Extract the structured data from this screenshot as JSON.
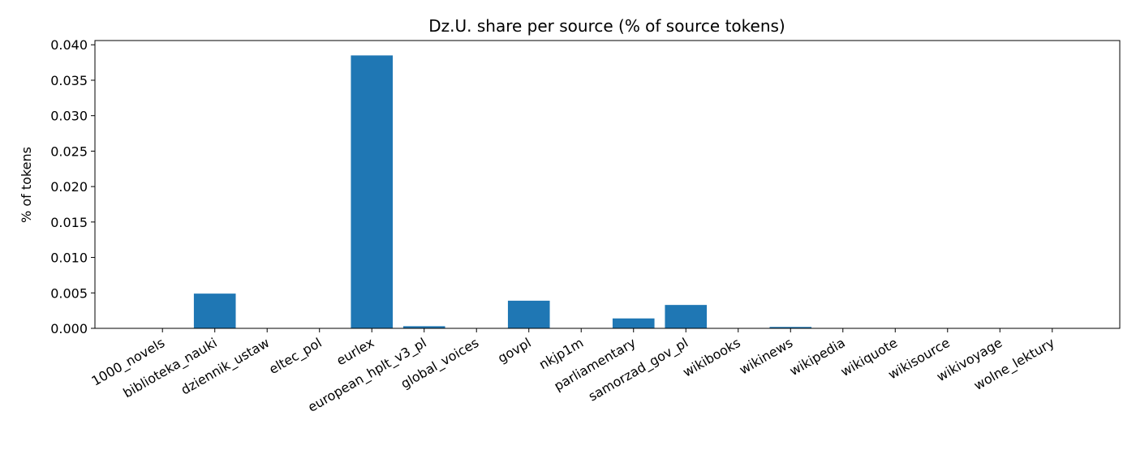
{
  "chart_data": {
    "type": "bar",
    "title": "Dz.U. share per source (% of source tokens)",
    "y_label": "% of tokens",
    "categories": [
      "1000_novels",
      "biblioteka_nauki",
      "dziennik_ustaw",
      "eltec_pol",
      "eurlex",
      "european_hplt_v3_pl",
      "global_voices",
      "govpl",
      "nkjp1m",
      "parliamentary",
      "samorzad_gov_pl",
      "wikibooks",
      "wikinews",
      "wikipedia",
      "wikiquote",
      "wikisource",
      "wikivoyage",
      "wolne_lektury"
    ],
    "values": [
      0,
      0.0049,
      0,
      0,
      0.0385,
      0.0003,
      0,
      0.0039,
      0,
      0.0014,
      0.0033,
      5e-05,
      0.0002,
      0,
      0,
      0,
      0,
      0
    ],
    "color": "#1f77b4",
    "ylim": [
      0,
      0.0406
    ],
    "yticks": [
      {
        "value": 0,
        "label": "0.000"
      },
      {
        "value": 0.005,
        "label": "0.005"
      },
      {
        "value": 0.01,
        "label": "0.010"
      },
      {
        "value": 0.015,
        "label": "0.015"
      },
      {
        "value": 0.02,
        "label": "0.020"
      },
      {
        "value": 0.025,
        "label": "0.025"
      },
      {
        "value": 0.03,
        "label": "0.030"
      },
      {
        "value": 0.035,
        "label": "0.035"
      },
      {
        "value": 0.04,
        "label": "0.040"
      }
    ],
    "grid": false
  }
}
